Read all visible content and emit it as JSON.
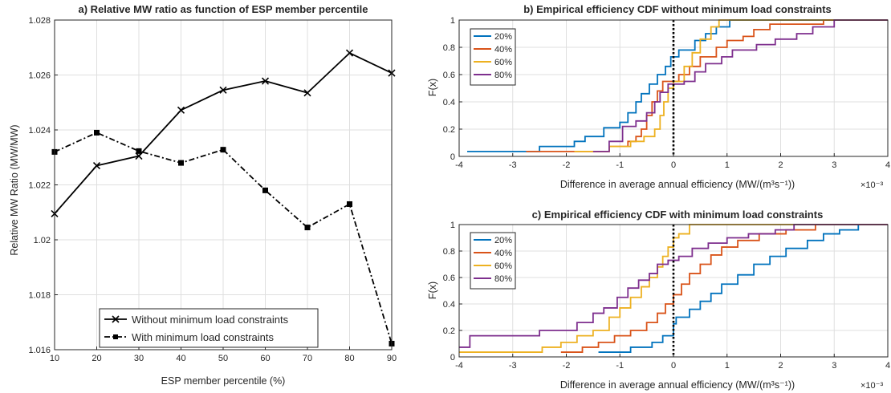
{
  "colors": {
    "s20": "#0072BD",
    "s40": "#D95319",
    "s60": "#EDB120",
    "s80": "#7E2F8E",
    "grid": "#DFDFDF",
    "axis": "#262626"
  },
  "chart_data": [
    {
      "id": "a",
      "type": "line",
      "title": "a) Relative MW ratio as function of ESP member percentile",
      "xlabel": "ESP member percentile (%)",
      "ylabel": "Relative MW Ratio (MW/MW)",
      "xlim": [
        10,
        90
      ],
      "ylim": [
        1.016,
        1.028
      ],
      "xticks": [
        10,
        20,
        30,
        40,
        50,
        60,
        70,
        80,
        90
      ],
      "xtick_labels": [
        "10",
        "20",
        "30",
        "40",
        "50",
        "60",
        "70",
        "80",
        "90"
      ],
      "yticks": [
        1.016,
        1.018,
        1.02,
        1.022,
        1.024,
        1.026,
        1.028
      ],
      "ytick_labels": [
        "1.016",
        "1.018",
        "1.02",
        "1.022",
        "1.024",
        "1.026",
        "1.028"
      ],
      "grid": true,
      "legend_position": "bottom-left",
      "x": [
        10,
        20,
        30,
        40,
        50,
        60,
        70,
        80,
        90
      ],
      "series": [
        {
          "name": "Without minimum load constraints",
          "style": "solid",
          "marker": "x",
          "values": [
            1.02095,
            1.0227,
            1.02305,
            1.02472,
            1.02545,
            1.02578,
            1.02535,
            1.0268,
            1.02607
          ]
        },
        {
          "name": "With minimum load constraints",
          "style": "dashdot",
          "marker": "square",
          "values": [
            1.0232,
            1.0239,
            1.02323,
            1.0228,
            1.02328,
            1.0218,
            1.02045,
            1.0213,
            1.01622
          ]
        }
      ]
    },
    {
      "id": "b",
      "type": "line",
      "step": true,
      "title": "b) Empirical efficiency CDF without minimum load constraints",
      "xlabel": "Difference in average annual efficiency (MW/(m³s⁻¹))",
      "ylabel": "F(x)",
      "xlim": [
        -4,
        4
      ],
      "ylim": [
        0,
        1
      ],
      "xticks": [
        -4,
        -3,
        -2,
        -1,
        0,
        1,
        2,
        3,
        4
      ],
      "xtick_labels": [
        "-4",
        "-3",
        "-2",
        "-1",
        "0",
        "1",
        "2",
        "3",
        "4"
      ],
      "yticks": [
        0,
        0.2,
        0.4,
        0.6,
        0.8,
        1
      ],
      "ytick_labels": [
        "0",
        "0.2",
        "0.4",
        "0.6",
        "0.8",
        "1"
      ],
      "x_multiplier": "×10⁻³",
      "grid": true,
      "legend_position": "top-left",
      "vline_x": 0,
      "series": [
        {
          "name": "20%",
          "color_key": "s20",
          "steps": [
            [
              -3.85,
              0.036
            ],
            [
              -2.5,
              0.073
            ],
            [
              -1.85,
              0.11
            ],
            [
              -1.65,
              0.146
            ],
            [
              -1.3,
              0.21
            ],
            [
              -1.0,
              0.25
            ],
            [
              -0.85,
              0.32
            ],
            [
              -0.7,
              0.4
            ],
            [
              -0.6,
              0.46
            ],
            [
              -0.45,
              0.53
            ],
            [
              -0.3,
              0.6
            ],
            [
              -0.15,
              0.66
            ],
            [
              -0.05,
              0.73
            ],
            [
              0.1,
              0.78
            ],
            [
              0.4,
              0.85
            ],
            [
              0.6,
              0.9
            ],
            [
              0.8,
              0.95
            ],
            [
              1.05,
              1.0
            ],
            [
              4.0,
              1.0
            ]
          ]
        },
        {
          "name": "40%",
          "color_key": "s40",
          "steps": [
            [
              -2.75,
              0.036
            ],
            [
              -1.2,
              0.073
            ],
            [
              -0.85,
              0.11
            ],
            [
              -0.7,
              0.146
            ],
            [
              -0.6,
              0.2
            ],
            [
              -0.5,
              0.3
            ],
            [
              -0.4,
              0.4
            ],
            [
              -0.3,
              0.48
            ],
            [
              -0.2,
              0.55
            ],
            [
              0.1,
              0.6
            ],
            [
              0.3,
              0.66
            ],
            [
              0.5,
              0.73
            ],
            [
              0.8,
              0.8
            ],
            [
              1.0,
              0.85
            ],
            [
              1.3,
              0.88
            ],
            [
              1.5,
              0.93
            ],
            [
              1.8,
              0.97
            ],
            [
              2.8,
              1.0
            ],
            [
              4.0,
              1.0
            ]
          ]
        },
        {
          "name": "60%",
          "color_key": "s60",
          "steps": [
            [
              -1.85,
              0.036
            ],
            [
              -1.2,
              0.073
            ],
            [
              -0.8,
              0.11
            ],
            [
              -0.55,
              0.146
            ],
            [
              -0.35,
              0.2
            ],
            [
              -0.25,
              0.3
            ],
            [
              -0.18,
              0.4
            ],
            [
              -0.1,
              0.5
            ],
            [
              0.0,
              0.55
            ],
            [
              0.2,
              0.66
            ],
            [
              0.35,
              0.76
            ],
            [
              0.5,
              0.86
            ],
            [
              0.7,
              0.95
            ],
            [
              0.85,
              1.0
            ],
            [
              4.0,
              1.0
            ]
          ]
        },
        {
          "name": "80%",
          "color_key": "s80",
          "steps": [
            [
              -1.5,
              0.036
            ],
            [
              -1.2,
              0.11
            ],
            [
              -0.95,
              0.22
            ],
            [
              -0.7,
              0.26
            ],
            [
              -0.5,
              0.32
            ],
            [
              -0.35,
              0.4
            ],
            [
              -0.25,
              0.47
            ],
            [
              -0.1,
              0.53
            ],
            [
              0.2,
              0.55
            ],
            [
              0.4,
              0.62
            ],
            [
              0.6,
              0.68
            ],
            [
              0.9,
              0.73
            ],
            [
              1.1,
              0.78
            ],
            [
              1.55,
              0.82
            ],
            [
              1.9,
              0.86
            ],
            [
              2.3,
              0.9
            ],
            [
              2.6,
              0.95
            ],
            [
              3.0,
              1.0
            ],
            [
              4.0,
              1.0
            ]
          ]
        }
      ]
    },
    {
      "id": "c",
      "type": "line",
      "step": true,
      "title": "c) Empirical efficiency CDF with minimum load constraints",
      "xlabel": "Difference in average annual efficiency (MW/(m³s⁻¹))",
      "ylabel": "F(x)",
      "xlim": [
        -4,
        4
      ],
      "ylim": [
        0,
        1
      ],
      "xticks": [
        -4,
        -3,
        -2,
        -1,
        0,
        1,
        2,
        3,
        4
      ],
      "xtick_labels": [
        "-4",
        "-3",
        "-2",
        "-1",
        "0",
        "1",
        "2",
        "3",
        "4"
      ],
      "yticks": [
        0,
        0.2,
        0.4,
        0.6,
        0.8,
        1
      ],
      "ytick_labels": [
        "0",
        "0.2",
        "0.4",
        "0.6",
        "0.8",
        "1"
      ],
      "x_multiplier": "×10⁻³",
      "grid": true,
      "legend_position": "top-left",
      "vline_x": 0,
      "series": [
        {
          "name": "20%",
          "color_key": "s20",
          "steps": [
            [
              -1.4,
              0.036
            ],
            [
              -0.8,
              0.073
            ],
            [
              -0.4,
              0.11
            ],
            [
              -0.2,
              0.16
            ],
            [
              0.0,
              0.25
            ],
            [
              0.05,
              0.3
            ],
            [
              0.3,
              0.36
            ],
            [
              0.5,
              0.42
            ],
            [
              0.7,
              0.48
            ],
            [
              0.9,
              0.55
            ],
            [
              1.2,
              0.62
            ],
            [
              1.5,
              0.7
            ],
            [
              1.8,
              0.76
            ],
            [
              2.1,
              0.82
            ],
            [
              2.5,
              0.88
            ],
            [
              2.8,
              0.93
            ],
            [
              3.1,
              0.96
            ],
            [
              3.45,
              1.0
            ],
            [
              4.0,
              1.0
            ]
          ]
        },
        {
          "name": "40%",
          "color_key": "s40",
          "steps": [
            [
              -2.1,
              0.036
            ],
            [
              -1.7,
              0.073
            ],
            [
              -1.4,
              0.11
            ],
            [
              -1.1,
              0.16
            ],
            [
              -0.8,
              0.2
            ],
            [
              -0.5,
              0.26
            ],
            [
              -0.3,
              0.33
            ],
            [
              -0.15,
              0.4
            ],
            [
              0.0,
              0.47
            ],
            [
              0.15,
              0.55
            ],
            [
              0.3,
              0.63
            ],
            [
              0.5,
              0.7
            ],
            [
              0.7,
              0.77
            ],
            [
              0.9,
              0.83
            ],
            [
              1.2,
              0.88
            ],
            [
              1.6,
              0.93
            ],
            [
              2.1,
              0.96
            ],
            [
              2.65,
              1.0
            ],
            [
              4.0,
              1.0
            ]
          ]
        },
        {
          "name": "60%",
          "color_key": "s60",
          "steps": [
            [
              -4.0,
              0.036
            ],
            [
              -2.45,
              0.073
            ],
            [
              -2.1,
              0.11
            ],
            [
              -1.8,
              0.16
            ],
            [
              -1.5,
              0.2
            ],
            [
              -1.2,
              0.3
            ],
            [
              -1.0,
              0.37
            ],
            [
              -0.8,
              0.45
            ],
            [
              -0.6,
              0.53
            ],
            [
              -0.45,
              0.6
            ],
            [
              -0.3,
              0.68
            ],
            [
              -0.2,
              0.76
            ],
            [
              -0.1,
              0.83
            ],
            [
              0.0,
              0.9
            ],
            [
              0.1,
              0.93
            ],
            [
              0.3,
              1.0
            ],
            [
              4.0,
              1.0
            ]
          ]
        },
        {
          "name": "80%",
          "color_key": "s80",
          "steps": [
            [
              -4.0,
              0.073
            ],
            [
              -3.8,
              0.16
            ],
            [
              -2.5,
              0.2
            ],
            [
              -1.8,
              0.26
            ],
            [
              -1.5,
              0.33
            ],
            [
              -1.3,
              0.37
            ],
            [
              -1.05,
              0.45
            ],
            [
              -0.85,
              0.52
            ],
            [
              -0.65,
              0.58
            ],
            [
              -0.45,
              0.63
            ],
            [
              -0.3,
              0.7
            ],
            [
              -0.1,
              0.73
            ],
            [
              0.1,
              0.76
            ],
            [
              0.35,
              0.82
            ],
            [
              0.65,
              0.86
            ],
            [
              1.0,
              0.9
            ],
            [
              1.4,
              0.93
            ],
            [
              1.9,
              0.96
            ],
            [
              2.25,
              1.0
            ],
            [
              4.0,
              1.0
            ]
          ]
        }
      ]
    }
  ]
}
